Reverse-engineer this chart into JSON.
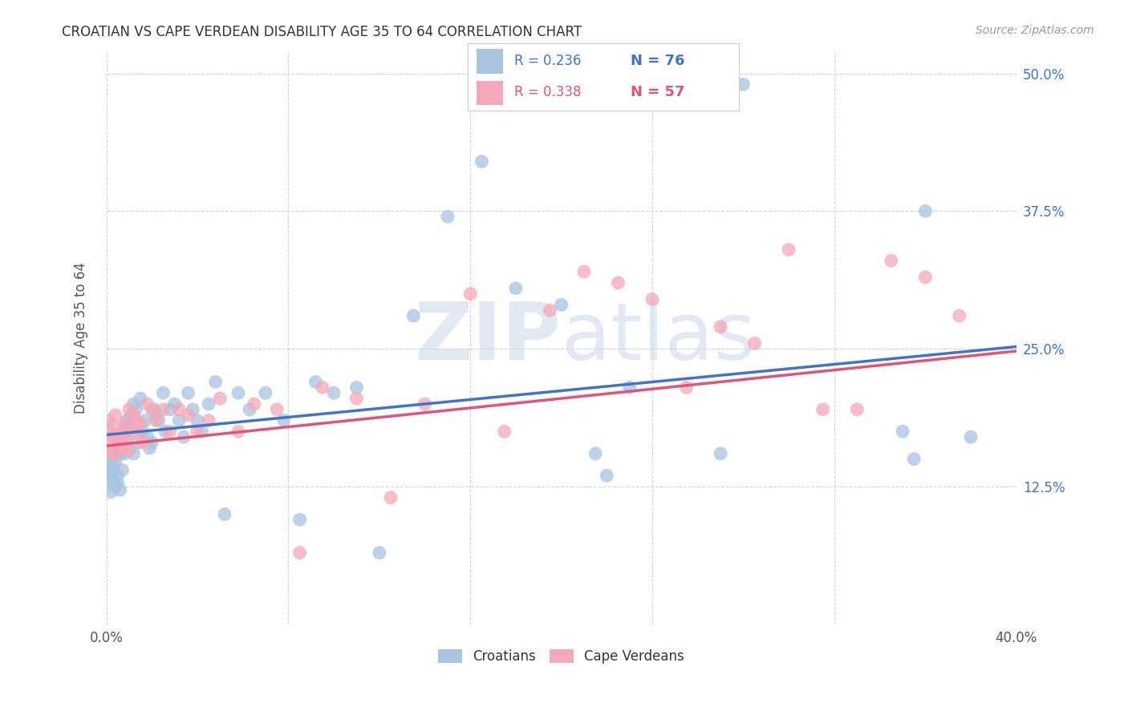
{
  "title": "CROATIAN VS CAPE VERDEAN DISABILITY AGE 35 TO 64 CORRELATION CHART",
  "source": "Source: ZipAtlas.com",
  "ylabel": "Disability Age 35 to 64",
  "xlim": [
    0.0,
    0.4
  ],
  "ylim": [
    0.0,
    0.52
  ],
  "x_ticks": [
    0.0,
    0.08,
    0.16,
    0.24,
    0.32,
    0.4
  ],
  "x_tick_labels": [
    "0.0%",
    "",
    "",
    "",
    "",
    "40.0%"
  ],
  "y_ticks": [
    0.0,
    0.125,
    0.25,
    0.375,
    0.5
  ],
  "y_tick_labels": [
    "",
    "12.5%",
    "25.0%",
    "37.5%",
    "50.0%"
  ],
  "legend_r1": "R = 0.236",
  "legend_n1": "N = 76",
  "legend_r2": "R = 0.338",
  "legend_n2": "N = 57",
  "color_croatian": "#a8c4e0",
  "color_cape_verdean": "#f4a8b8",
  "color_line_croatian": "#4472c4",
  "color_line_cape_verdean": "#e05575",
  "line_cr_x0": 0.0,
  "line_cr_y0": 0.172,
  "line_cr_x1": 0.4,
  "line_cr_y1": 0.252,
  "line_cv_x0": 0.0,
  "line_cv_y0": 0.162,
  "line_cv_x1": 0.4,
  "line_cv_y1": 0.248,
  "croatian_x": [
    0.001,
    0.001,
    0.001,
    0.002,
    0.002,
    0.002,
    0.002,
    0.003,
    0.003,
    0.003,
    0.004,
    0.004,
    0.005,
    0.005,
    0.005,
    0.006,
    0.006,
    0.006,
    0.007,
    0.007,
    0.008,
    0.008,
    0.009,
    0.009,
    0.01,
    0.01,
    0.011,
    0.012,
    0.012,
    0.013,
    0.014,
    0.015,
    0.016,
    0.017,
    0.018,
    0.019,
    0.02,
    0.021,
    0.022,
    0.023,
    0.025,
    0.026,
    0.028,
    0.03,
    0.032,
    0.034,
    0.036,
    0.038,
    0.04,
    0.042,
    0.045,
    0.048,
    0.052,
    0.058,
    0.063,
    0.07,
    0.078,
    0.085,
    0.092,
    0.1,
    0.11,
    0.12,
    0.135,
    0.15,
    0.165,
    0.18,
    0.2,
    0.215,
    0.22,
    0.23,
    0.27,
    0.28,
    0.35,
    0.355,
    0.36,
    0.38
  ],
  "croatian_y": [
    0.145,
    0.14,
    0.132,
    0.138,
    0.15,
    0.12,
    0.155,
    0.14,
    0.142,
    0.13,
    0.148,
    0.125,
    0.128,
    0.165,
    0.135,
    0.158,
    0.122,
    0.155,
    0.14,
    0.162,
    0.175,
    0.155,
    0.18,
    0.185,
    0.16,
    0.17,
    0.19,
    0.2,
    0.155,
    0.195,
    0.165,
    0.205,
    0.175,
    0.185,
    0.17,
    0.16,
    0.165,
    0.195,
    0.19,
    0.185,
    0.21,
    0.175,
    0.195,
    0.2,
    0.185,
    0.17,
    0.21,
    0.195,
    0.185,
    0.175,
    0.2,
    0.22,
    0.1,
    0.21,
    0.195,
    0.21,
    0.185,
    0.095,
    0.22,
    0.21,
    0.215,
    0.065,
    0.28,
    0.37,
    0.42,
    0.305,
    0.29,
    0.155,
    0.135,
    0.215,
    0.155,
    0.49,
    0.175,
    0.15,
    0.375,
    0.17
  ],
  "cape_verdean_x": [
    0.001,
    0.001,
    0.002,
    0.002,
    0.003,
    0.003,
    0.004,
    0.004,
    0.005,
    0.005,
    0.006,
    0.006,
    0.007,
    0.008,
    0.008,
    0.009,
    0.01,
    0.01,
    0.011,
    0.012,
    0.013,
    0.014,
    0.015,
    0.016,
    0.018,
    0.02,
    0.022,
    0.025,
    0.028,
    0.032,
    0.036,
    0.04,
    0.045,
    0.05,
    0.058,
    0.065,
    0.075,
    0.085,
    0.095,
    0.11,
    0.125,
    0.14,
    0.16,
    0.175,
    0.195,
    0.21,
    0.225,
    0.24,
    0.255,
    0.27,
    0.285,
    0.3,
    0.315,
    0.33,
    0.345,
    0.36,
    0.375
  ],
  "cape_verdean_y": [
    0.185,
    0.175,
    0.165,
    0.155,
    0.17,
    0.18,
    0.155,
    0.19,
    0.162,
    0.172,
    0.158,
    0.165,
    0.16,
    0.175,
    0.182,
    0.168,
    0.195,
    0.158,
    0.178,
    0.19,
    0.185,
    0.175,
    0.182,
    0.165,
    0.2,
    0.195,
    0.185,
    0.195,
    0.175,
    0.195,
    0.19,
    0.175,
    0.185,
    0.205,
    0.175,
    0.2,
    0.195,
    0.065,
    0.215,
    0.205,
    0.115,
    0.2,
    0.3,
    0.175,
    0.285,
    0.32,
    0.31,
    0.295,
    0.215,
    0.27,
    0.255,
    0.34,
    0.195,
    0.195,
    0.33,
    0.315,
    0.28
  ]
}
